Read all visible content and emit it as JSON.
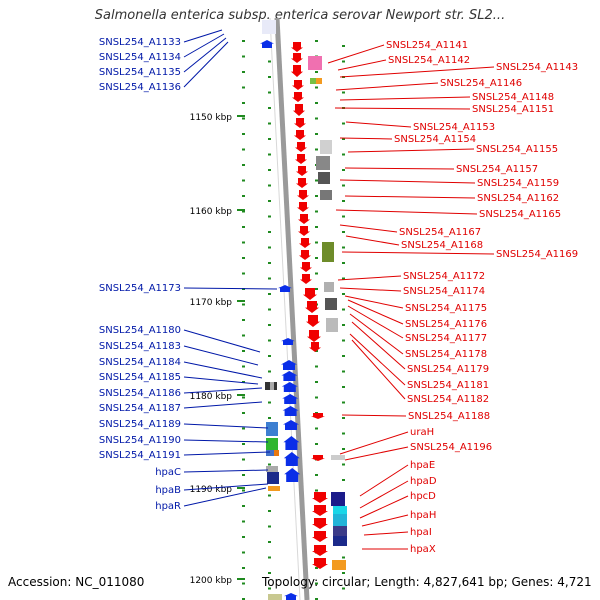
{
  "title": "Salmonella enterica subsp. enterica serovar Newport str. SL2...",
  "footer": {
    "accession": "Accession: NC_011080",
    "summary": "Topology: circular; Length: 4,827,641 bp; Genes: 4,721"
  },
  "colors": {
    "left_label": "#0018a8",
    "right_label": "#e00000",
    "backbone": "#9a9a9a",
    "forward_gene": "#0a2ee8",
    "reverse_gene": "#f00000",
    "tick": "#1f8a1f"
  },
  "scale_labels": [
    "1150 kbp",
    "1160 kbp",
    "1170 kbp",
    "1180 kbp",
    "1190 kbp",
    "1200 kbp"
  ],
  "left_labels": [
    "SNSL254_A1133",
    "SNSL254_A1134",
    "SNSL254_A1135",
    "SNSL254_A1136",
    "SNSL254_A1173",
    "SNSL254_A1180",
    "SNSL254_A1183",
    "SNSL254_A1184",
    "SNSL254_A1185",
    "SNSL254_A1186",
    "SNSL254_A1187",
    "SNSL254_A1189",
    "SNSL254_A1190",
    "SNSL254_A1191",
    "hpaC",
    "hpaB",
    "hpaR"
  ],
  "right_labels": [
    "SNSL254_A1141",
    "SNSL254_A1142",
    "SNSL254_A1143",
    "SNSL254_A1146",
    "SNSL254_A1148",
    "SNSL254_A1151",
    "SNSL254_A1153",
    "SNSL254_A1154",
    "SNSL254_A1155",
    "SNSL254_A1157",
    "SNSL254_A1159",
    "SNSL254_A1162",
    "SNSL254_A1165",
    "SNSL254_A1167",
    "SNSL254_A1168",
    "SNSL254_A1169",
    "SNSL254_A1172",
    "SNSL254_A1174",
    "SNSL254_A1175",
    "SNSL254_A1176",
    "SNSL254_A1177",
    "SNSL254_A1178",
    "SNSL254_A1179",
    "SNSL254_A1181",
    "SNSL254_A1182",
    "SNSL254_A1188",
    "uraH",
    "SNSL254_A1196",
    "hpaE",
    "hpaD",
    "hpcD",
    "hpaH",
    "hpaI",
    "hpaX"
  ]
}
